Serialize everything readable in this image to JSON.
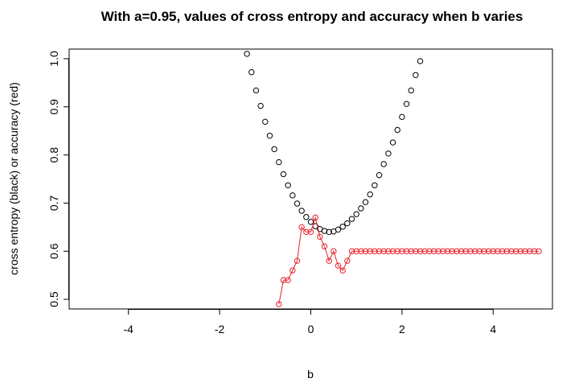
{
  "chart_data": {
    "type": "scatter",
    "title": "With a=0.95, values of cross entropy and accuracy when b varies",
    "xlabel": "b",
    "ylabel": "cross entropy (black) or accuracy (red)",
    "xlim": [
      -5.3,
      5.3
    ],
    "ylim": [
      0.48,
      1.02
    ],
    "xticks": [
      -4,
      -2,
      0,
      2,
      4
    ],
    "yticks": [
      0.5,
      0.6,
      0.7,
      0.8,
      0.9,
      1.0
    ],
    "xtick_labels": [
      "-4",
      "-2",
      "0",
      "2",
      "4"
    ],
    "ytick_labels": [
      "0.5",
      "0.6",
      "0.7",
      "0.8",
      "0.9",
      "1.0"
    ],
    "grid": false,
    "legend": "none",
    "series": [
      {
        "color": "#000000",
        "style": "points",
        "x": [
          -1.4,
          -1.3,
          -1.2,
          -1.1,
          -1.0,
          -0.9,
          -0.8,
          -0.7,
          -0.6,
          -0.5,
          -0.4,
          -0.3,
          -0.2,
          -0.1,
          0.0,
          0.1,
          0.2,
          0.3,
          0.4,
          0.5,
          0.6,
          0.7,
          0.8,
          0.9,
          1.0,
          1.1,
          1.2,
          1.3,
          1.4,
          1.5,
          1.6,
          1.7,
          1.8,
          1.9,
          2.0,
          2.1,
          2.2,
          2.3,
          2.4
        ],
        "y": [
          1.01,
          0.972,
          0.934,
          0.902,
          0.869,
          0.84,
          0.812,
          0.785,
          0.76,
          0.737,
          0.716,
          0.699,
          0.684,
          0.671,
          0.661,
          0.652,
          0.646,
          0.642,
          0.64,
          0.641,
          0.645,
          0.651,
          0.658,
          0.667,
          0.677,
          0.689,
          0.702,
          0.718,
          0.737,
          0.758,
          0.781,
          0.803,
          0.826,
          0.852,
          0.879,
          0.906,
          0.934,
          0.966,
          0.995
        ]
      },
      {
        "color": "#e8202a",
        "style": "points-and-lines",
        "x": [
          -0.7,
          -0.6,
          -0.5,
          -0.4,
          -0.3,
          -0.2,
          -0.1,
          0.0,
          0.1,
          0.2,
          0.3,
          0.4,
          0.5,
          0.6,
          0.7,
          0.8,
          0.9,
          1.0,
          1.1,
          1.2,
          1.3,
          1.4,
          1.5,
          1.6,
          1.7,
          1.8,
          1.9,
          2.0,
          2.1,
          2.2,
          2.3,
          2.4,
          2.5,
          2.6,
          2.7,
          2.8,
          2.9,
          3.0,
          3.1,
          3.2,
          3.3,
          3.4,
          3.5,
          3.6,
          3.7,
          3.8,
          3.9,
          4.0,
          4.1,
          4.2,
          4.3,
          4.4,
          4.5,
          4.6,
          4.7,
          4.8,
          4.9,
          5.0
        ],
        "y": [
          0.49,
          0.54,
          0.54,
          0.56,
          0.58,
          0.65,
          0.64,
          0.64,
          0.67,
          0.63,
          0.61,
          0.58,
          0.6,
          0.57,
          0.56,
          0.58,
          0.6,
          0.6,
          0.6,
          0.6,
          0.6,
          0.6,
          0.6,
          0.6,
          0.6,
          0.6,
          0.6,
          0.6,
          0.6,
          0.6,
          0.6,
          0.6,
          0.6,
          0.6,
          0.6,
          0.6,
          0.6,
          0.6,
          0.6,
          0.6,
          0.6,
          0.6,
          0.6,
          0.6,
          0.6,
          0.6,
          0.6,
          0.6,
          0.6,
          0.6,
          0.6,
          0.6,
          0.6,
          0.6,
          0.6,
          0.6,
          0.6,
          0.6
        ]
      }
    ]
  }
}
